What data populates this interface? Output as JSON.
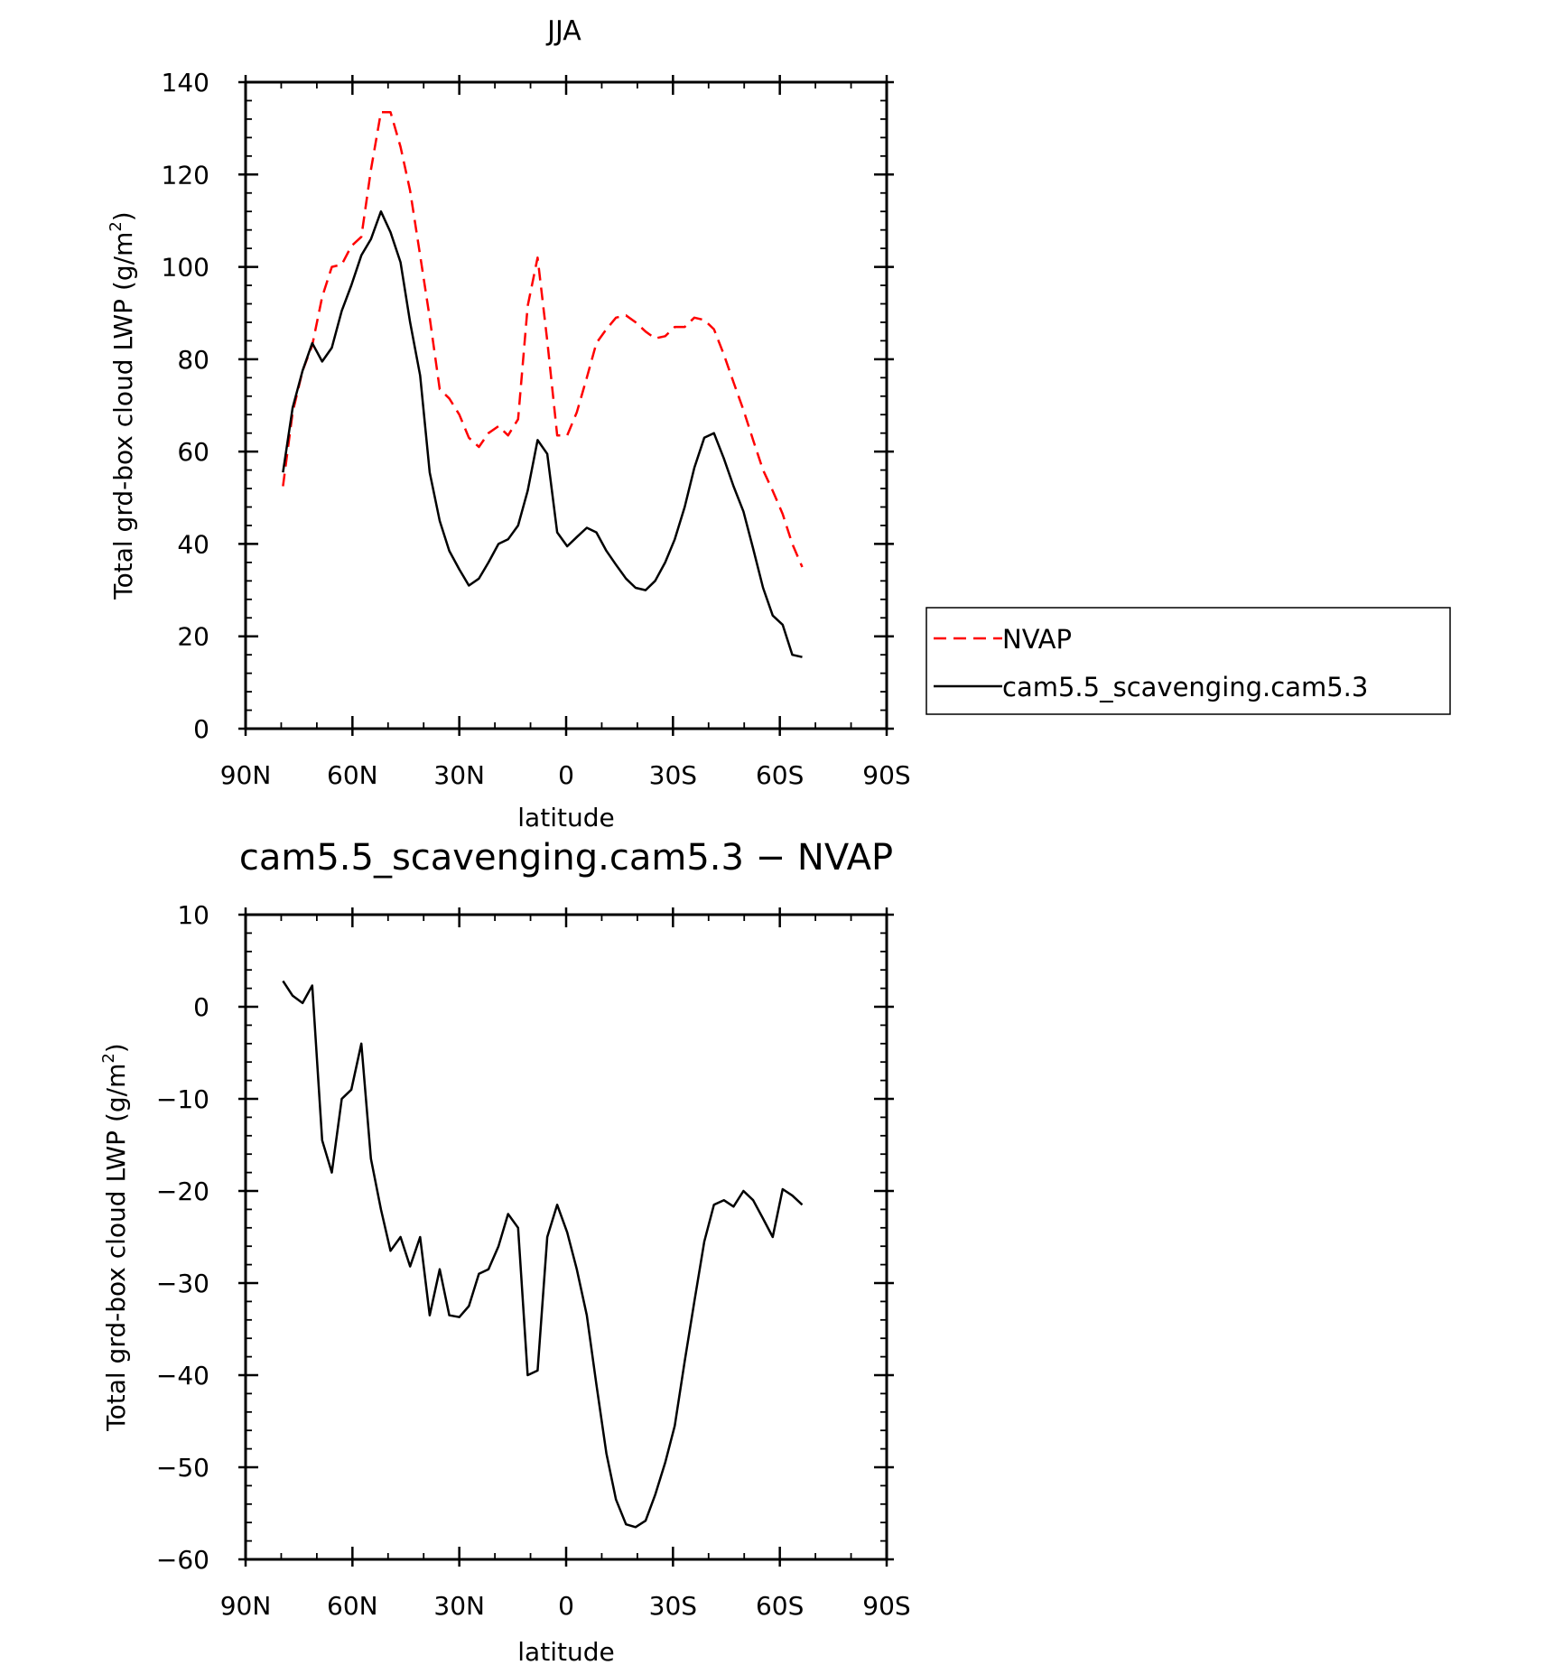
{
  "chart_data": [
    {
      "type": "line",
      "title": "JJA",
      "xlabel": "latitude",
      "ylabel": "Total grd-box cloud LWP (g/m²)",
      "ylabel_main": "Total grd-box cloud LWP (g/m",
      "ylabel_sup": "2",
      "ylabel_close": ")",
      "xlim": [
        -90,
        90
      ],
      "ylim": [
        0,
        140
      ],
      "x_ticks": [
        -90,
        -60,
        -30,
        0,
        30,
        60,
        90
      ],
      "x_tick_labels": [
        "90N",
        "60N",
        "30N",
        "0",
        "30S",
        "60S",
        "90S"
      ],
      "y_ticks": [
        0,
        20,
        40,
        60,
        80,
        100,
        120,
        140
      ],
      "y_tick_labels": [
        "0",
        "20",
        "40",
        "60",
        "80",
        "100",
        "120",
        "140"
      ],
      "legend_position": "right",
      "series": [
        {
          "name": "NVAP",
          "color": "#ff0000",
          "style": "dashed",
          "x": [
            -79.5,
            -76.8,
            -74.0,
            -71.3,
            -68.5,
            -65.8,
            -63.0,
            -60.3,
            -57.5,
            -54.8,
            -52.0,
            -49.3,
            -46.5,
            -43.8,
            -41.0,
            -38.3,
            -35.5,
            -32.8,
            -30.0,
            -27.3,
            -24.5,
            -21.8,
            -19.0,
            -16.3,
            -13.5,
            -10.8,
            -8.0,
            -5.3,
            -2.5,
            0.3,
            3.0,
            5.8,
            8.5,
            11.3,
            14.0,
            16.8,
            19.5,
            22.3,
            25.0,
            27.8,
            30.5,
            33.3,
            36.0,
            38.8,
            41.5,
            44.3,
            47.0,
            49.8,
            52.5,
            55.3,
            58.0,
            60.8,
            63.5,
            66.3
          ],
          "y": [
            52.5,
            68.5,
            77.5,
            83.0,
            93.5,
            100.0,
            100.5,
            104.5,
            106.5,
            121.0,
            133.5,
            133.5,
            126.0,
            116.5,
            102.5,
            89.0,
            73.5,
            71.5,
            68.0,
            63.0,
            61.0,
            64.0,
            65.5,
            63.5,
            67.0,
            91.5,
            102.0,
            84.0,
            63.5,
            63.5,
            68.5,
            76.0,
            83.5,
            86.5,
            89.0,
            89.5,
            88.0,
            86.0,
            84.5,
            85.0,
            87.0,
            87.0,
            89.0,
            88.5,
            86.5,
            81.0,
            75.0,
            69.0,
            62.5,
            56.0,
            51.5,
            46.5,
            40.0,
            35.0
          ]
        },
        {
          "name": "cam5.5_scavenging.cam5.3",
          "color": "#000000",
          "style": "solid",
          "x": [
            -79.5,
            -76.8,
            -74.0,
            -71.3,
            -68.5,
            -65.8,
            -63.0,
            -60.3,
            -57.5,
            -54.8,
            -52.0,
            -49.3,
            -46.5,
            -43.8,
            -41.0,
            -38.3,
            -35.5,
            -32.8,
            -30.0,
            -27.3,
            -24.5,
            -21.8,
            -19.0,
            -16.3,
            -13.5,
            -10.8,
            -8.0,
            -5.3,
            -2.5,
            0.3,
            3.0,
            5.8,
            8.5,
            11.3,
            14.0,
            16.8,
            19.5,
            22.3,
            25.0,
            27.8,
            30.5,
            33.3,
            36.0,
            38.8,
            41.5,
            44.3,
            47.0,
            49.8,
            52.5,
            55.3,
            58.0,
            60.8,
            63.5,
            66.3
          ],
          "y": [
            55.5,
            69.5,
            77.5,
            83.5,
            79.5,
            82.5,
            90.5,
            96.0,
            102.5,
            106.0,
            112.0,
            107.5,
            101.0,
            88.0,
            76.5,
            55.5,
            45.0,
            38.5,
            34.5,
            31.0,
            32.5,
            36.0,
            40.0,
            41.0,
            44.0,
            51.5,
            62.5,
            59.5,
            42.5,
            39.5,
            41.5,
            43.5,
            42.5,
            38.5,
            35.5,
            32.5,
            30.5,
            30.0,
            32.0,
            36.0,
            41.0,
            48.0,
            56.5,
            63.0,
            64.0,
            58.5,
            52.5,
            47.0,
            39.0,
            30.5,
            24.5,
            22.5,
            16.0,
            15.5
          ]
        }
      ]
    },
    {
      "type": "line",
      "title": "cam5.5_scavenging.cam5.3 − NVAP",
      "xlabel": "latitude",
      "ylabel": "Total grd-box cloud LWP (g/m²)",
      "ylabel_main": "Total grd-box cloud LWP (g/m",
      "ylabel_sup": "2",
      "ylabel_close": ")",
      "xlim": [
        -90,
        90
      ],
      "ylim": [
        -60,
        10
      ],
      "x_ticks": [
        -90,
        -60,
        -30,
        0,
        30,
        60,
        90
      ],
      "x_tick_labels": [
        "90N",
        "60N",
        "30N",
        "0",
        "30S",
        "60S",
        "90S"
      ],
      "y_ticks": [
        -60,
        -50,
        -40,
        -30,
        -20,
        -10,
        0,
        10
      ],
      "y_tick_labels": [
        "−60",
        "−50",
        "−40",
        "−30",
        "−20",
        "−10",
        "0",
        "10"
      ],
      "series": [
        {
          "color": "#000000",
          "style": "solid",
          "x": [
            -79.5,
            -76.8,
            -74.0,
            -71.3,
            -68.5,
            -65.8,
            -63.0,
            -60.3,
            -57.5,
            -54.8,
            -52.0,
            -49.3,
            -46.5,
            -43.8,
            -41.0,
            -38.3,
            -35.5,
            -32.8,
            -30.0,
            -27.3,
            -24.5,
            -21.8,
            -19.0,
            -16.3,
            -13.5,
            -10.8,
            -8.0,
            -5.3,
            -2.5,
            0.3,
            3.0,
            5.8,
            8.5,
            11.3,
            14.0,
            16.8,
            19.5,
            22.3,
            25.0,
            27.8,
            30.5,
            33.3,
            36.0,
            38.8,
            41.5,
            44.3,
            47.0,
            49.8,
            52.5,
            55.3,
            58.0,
            60.8,
            63.5,
            66.3
          ],
          "y": [
            2.8,
            1.2,
            0.4,
            2.3,
            -14.5,
            -18.0,
            -10.0,
            -9.0,
            -4.0,
            -16.5,
            -22.0,
            -26.5,
            -25.0,
            -28.2,
            -25.0,
            -33.5,
            -28.5,
            -33.5,
            -33.7,
            -32.5,
            -29.0,
            -28.5,
            -26.0,
            -22.5,
            -24.0,
            -40.0,
            -39.5,
            -25.0,
            -21.5,
            -24.5,
            -28.5,
            -33.5,
            -41.0,
            -48.5,
            -53.5,
            -56.2,
            -56.5,
            -55.8,
            -53.0,
            -49.5,
            -45.5,
            -38.5,
            -32.0,
            -25.5,
            -21.5,
            -21.0,
            -21.7,
            -20.0,
            -21.0,
            -23.0,
            -25.0,
            -19.8,
            -20.5,
            -21.5
          ]
        }
      ]
    }
  ]
}
